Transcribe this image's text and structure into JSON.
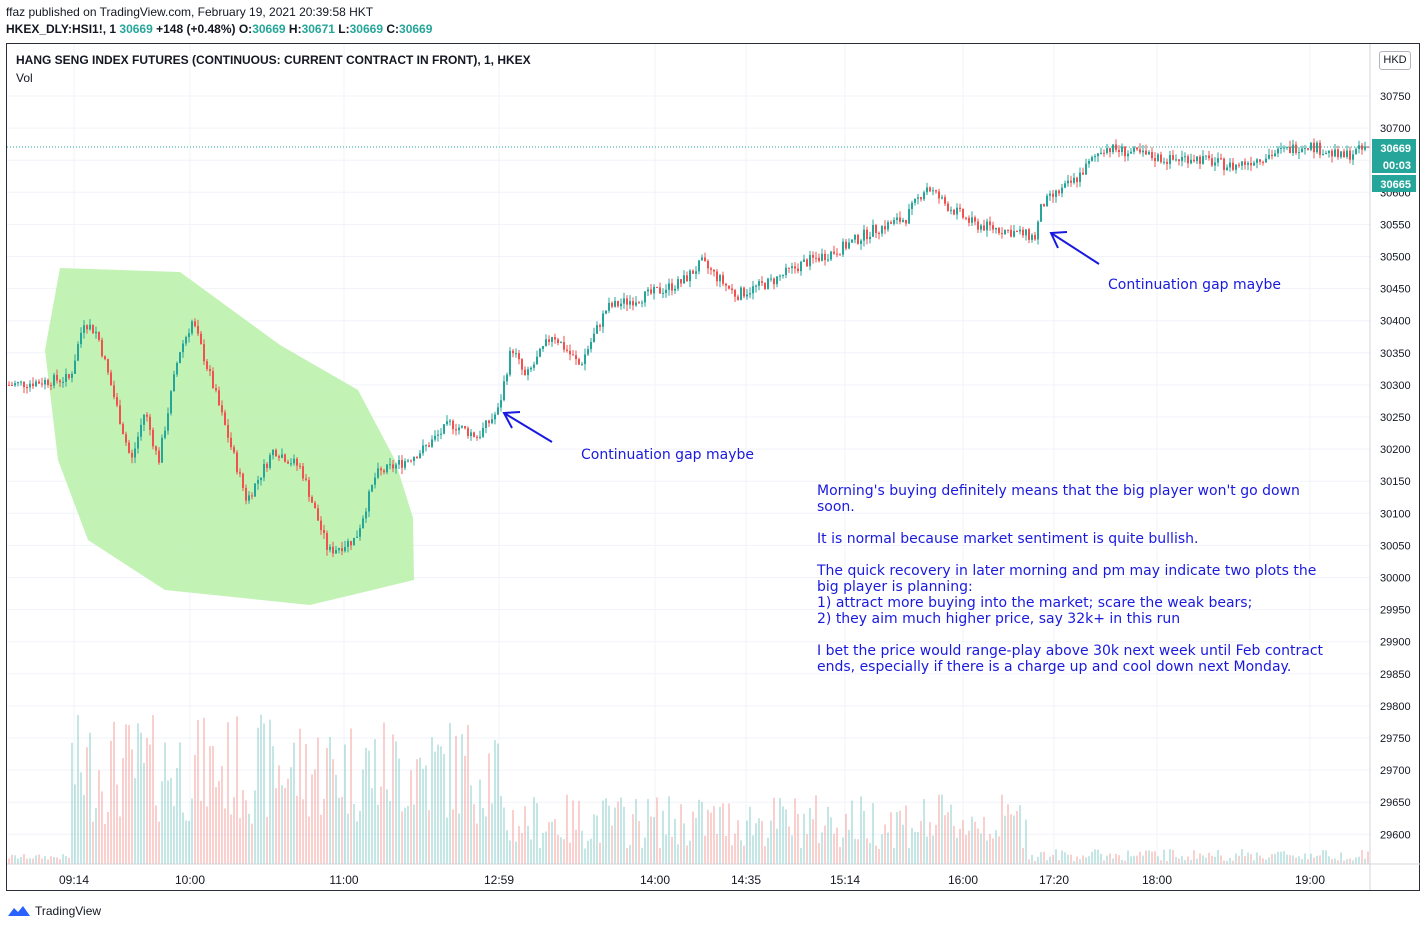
{
  "header": {
    "published": "ffaz published on TradingView.com, February 19, 2021 20:39:58 HKT",
    "symbol": "HKEX_DLY:HSI1!, 1",
    "last": "30669",
    "change": "+148 (+0.48%)",
    "open_label": "O:",
    "open": "30669",
    "high_label": "H:",
    "high": "30671",
    "low_label": "L:",
    "low": "30669",
    "close_label": "C:",
    "close": "30669"
  },
  "chart": {
    "title": "HANG SENG INDEX FUTURES (CONTINUOUS: CURRENT CONTRACT IN FRONT), 1, HKEX",
    "volume_label": "Vol",
    "currency": "HKD",
    "price_tag": "30669",
    "countdown_tag": "00:03",
    "high_tag": "30665"
  },
  "annotations": {
    "gap1": "Continuation gap maybe",
    "gap2": "Continuation gap maybe",
    "commentary": "Morning's buying definitely means that the big player won't go down soon.\n\nIt is normal because market sentiment is quite bullish.\n\nThe quick recovery in later morning and pm may indicate two plots the big player is planning:\n1) attract more buying into the market; scare the weak bears;\n2) they aim much higher price, say 32k+ in this run\n\nI bet the price would range-play above 30k next week until Feb contract ends, especially if there is a charge up and cool down next Monday."
  },
  "footer": {
    "brand": "TradingView"
  },
  "colors": {
    "up": "#26a69a",
    "down": "#ef5350",
    "highlight": "#b9f0a8",
    "annotation": "#1a1adf",
    "last_price": "#26a69a"
  },
  "chart_data": {
    "type": "candlestick",
    "y_axis_ticks": [
      "29600",
      "29650",
      "29700",
      "29750",
      "29800",
      "29850",
      "29900",
      "29950",
      "30000",
      "30050",
      "30100",
      "30150",
      "30200",
      "30250",
      "30300",
      "30350",
      "30400",
      "30450",
      "30500",
      "30550",
      "30600",
      "30650",
      "30700",
      "30750"
    ],
    "x_axis_ticks": [
      "09:14",
      "10:00",
      "11:00",
      "12:59",
      "14:00",
      "14:35",
      "15:14",
      "16:00",
      "17:20",
      "18:00",
      "19:00"
    ],
    "ylim": [
      29550,
      30790
    ],
    "price_path": [
      {
        "x": 0,
        "y": 30300
      },
      {
        "x": 0.045,
        "y": 30310
      },
      {
        "x": 0.055,
        "y": 30400
      },
      {
        "x": 0.065,
        "y": 30380
      },
      {
        "x": 0.09,
        "y": 30180
      },
      {
        "x": 0.1,
        "y": 30260
      },
      {
        "x": 0.11,
        "y": 30180
      },
      {
        "x": 0.125,
        "y": 30350
      },
      {
        "x": 0.135,
        "y": 30400
      },
      {
        "x": 0.15,
        "y": 30300
      },
      {
        "x": 0.175,
        "y": 30120
      },
      {
        "x": 0.195,
        "y": 30200
      },
      {
        "x": 0.215,
        "y": 30170
      },
      {
        "x": 0.235,
        "y": 30040
      },
      {
        "x": 0.255,
        "y": 30060
      },
      {
        "x": 0.27,
        "y": 30160
      },
      {
        "x": 0.29,
        "y": 30180
      },
      {
        "x": 0.305,
        "y": 30200
      },
      {
        "x": 0.325,
        "y": 30240
      },
      {
        "x": 0.345,
        "y": 30220
      },
      {
        "x": 0.36,
        "y": 30260
      },
      {
        "x": 0.37,
        "y": 30360
      },
      {
        "x": 0.38,
        "y": 30310
      },
      {
        "x": 0.4,
        "y": 30380
      },
      {
        "x": 0.42,
        "y": 30330
      },
      {
        "x": 0.44,
        "y": 30420
      },
      {
        "x": 0.47,
        "y": 30440
      },
      {
        "x": 0.495,
        "y": 30460
      },
      {
        "x": 0.51,
        "y": 30490
      },
      {
        "x": 0.52,
        "y": 30470
      },
      {
        "x": 0.535,
        "y": 30440
      },
      {
        "x": 0.56,
        "y": 30460
      },
      {
        "x": 0.585,
        "y": 30490
      },
      {
        "x": 0.61,
        "y": 30510
      },
      {
        "x": 0.635,
        "y": 30540
      },
      {
        "x": 0.66,
        "y": 30560
      },
      {
        "x": 0.675,
        "y": 30610
      },
      {
        "x": 0.69,
        "y": 30580
      },
      {
        "x": 0.71,
        "y": 30550
      },
      {
        "x": 0.735,
        "y": 30540
      },
      {
        "x": 0.755,
        "y": 30530
      },
      {
        "x": 0.76,
        "y": 30580
      },
      {
        "x": 0.785,
        "y": 30620
      },
      {
        "x": 0.805,
        "y": 30670
      },
      {
        "x": 0.83,
        "y": 30660
      },
      {
        "x": 0.855,
        "y": 30650
      },
      {
        "x": 0.87,
        "y": 30655
      },
      {
        "x": 0.9,
        "y": 30640
      },
      {
        "x": 0.93,
        "y": 30660
      },
      {
        "x": 0.955,
        "y": 30675
      },
      {
        "x": 0.98,
        "y": 30655
      },
      {
        "x": 1.0,
        "y": 30669
      }
    ]
  }
}
